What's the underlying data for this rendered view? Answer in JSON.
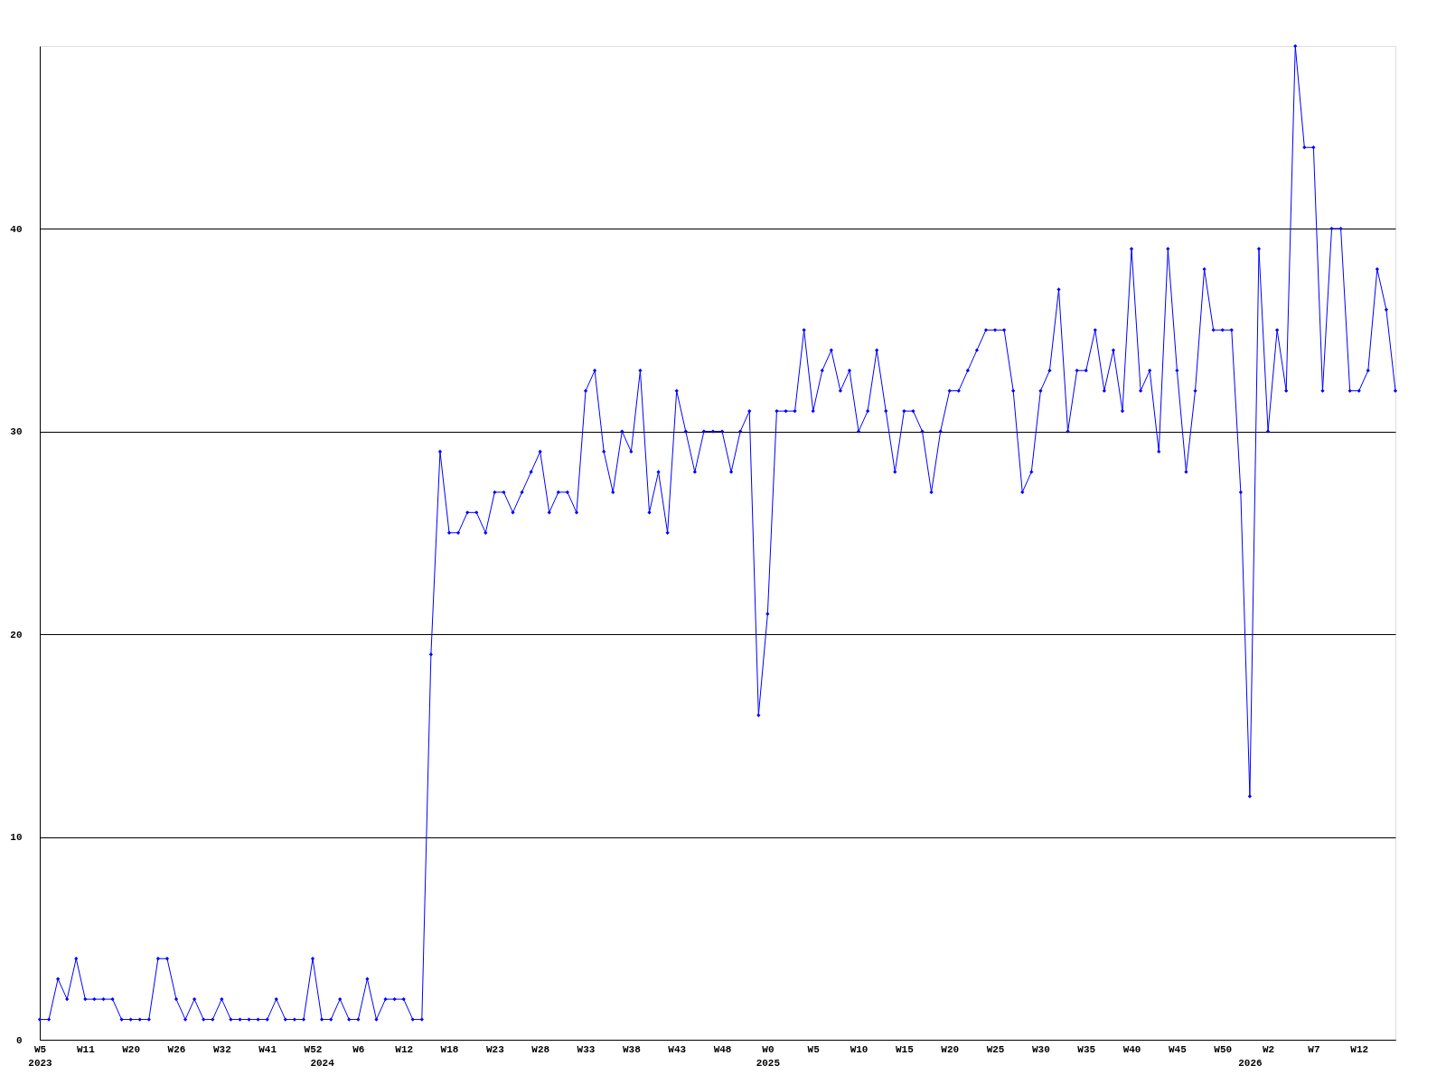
{
  "chart_data": {
    "type": "line",
    "categories": [
      "W5\n2023",
      null,
      null,
      null,
      null,
      "W11",
      null,
      null,
      null,
      null,
      "W20",
      null,
      null,
      null,
      null,
      "W26",
      null,
      null,
      null,
      null,
      "W32",
      null,
      null,
      null,
      null,
      "W41",
      null,
      null,
      null,
      null,
      "W52",
      "\n2024",
      null,
      null,
      null,
      "W6",
      null,
      null,
      null,
      null,
      "W12",
      null,
      null,
      null,
      null,
      "W18",
      null,
      null,
      null,
      null,
      "W23",
      null,
      null,
      null,
      null,
      "W28",
      null,
      null,
      null,
      null,
      "W33",
      null,
      null,
      null,
      null,
      "W38",
      null,
      null,
      null,
      null,
      "W43",
      null,
      null,
      null,
      null,
      "W48",
      null,
      null,
      null,
      null,
      "W0\n2025",
      null,
      null,
      null,
      null,
      "W5",
      null,
      null,
      null,
      null,
      "W10",
      null,
      null,
      null,
      null,
      "W15",
      null,
      null,
      null,
      null,
      "W20",
      null,
      null,
      null,
      null,
      "W25",
      null,
      null,
      null,
      null,
      "W30",
      null,
      null,
      null,
      null,
      "W35",
      null,
      null,
      null,
      null,
      "W40",
      null,
      null,
      null,
      null,
      "W45",
      null,
      null,
      null,
      null,
      "W50",
      null,
      null,
      "\n2026",
      null,
      "W2",
      null,
      null,
      null,
      null,
      "W7",
      null,
      null,
      null,
      null,
      "W12",
      null,
      null,
      null,
      null
    ],
    "series": [
      {
        "color": "#0000ff",
        "values": [
          1,
          1,
          3,
          2,
          4,
          2,
          2,
          2,
          2,
          1,
          1,
          1,
          1,
          4,
          4,
          2,
          1,
          2,
          1,
          1,
          2,
          1,
          1,
          1,
          1,
          1,
          2,
          1,
          1,
          1,
          4,
          1,
          1,
          2,
          1,
          1,
          3,
          1,
          2,
          2,
          2,
          1,
          1,
          19,
          29,
          25,
          25,
          26,
          26,
          25,
          27,
          27,
          26,
          27,
          28,
          29,
          26,
          27,
          27,
          26,
          32,
          33,
          29,
          27,
          30,
          29,
          33,
          26,
          28,
          25,
          32,
          30,
          28,
          30,
          30,
          30,
          28,
          30,
          31,
          16,
          21,
          31,
          31,
          31,
          35,
          31,
          33,
          34,
          32,
          33,
          30,
          31,
          34,
          31,
          28,
          31,
          31,
          30,
          27,
          30,
          32,
          32,
          33,
          34,
          35,
          35,
          35,
          32,
          27,
          28,
          32,
          33,
          37,
          30,
          33,
          33,
          35,
          32,
          34,
          31,
          39,
          32,
          33,
          29,
          39,
          33,
          28,
          32,
          38,
          35,
          35,
          35,
          27,
          12,
          39,
          30,
          35,
          32,
          49,
          44,
          44,
          32,
          40,
          40,
          32,
          32,
          33,
          38,
          36,
          32
        ]
      }
    ],
    "ylim": [
      0,
      49
    ],
    "yticks": [
      0,
      10,
      20,
      30,
      40
    ],
    "grid": "y",
    "marker": "diamond",
    "line_style": "solid",
    "legend": false
  }
}
